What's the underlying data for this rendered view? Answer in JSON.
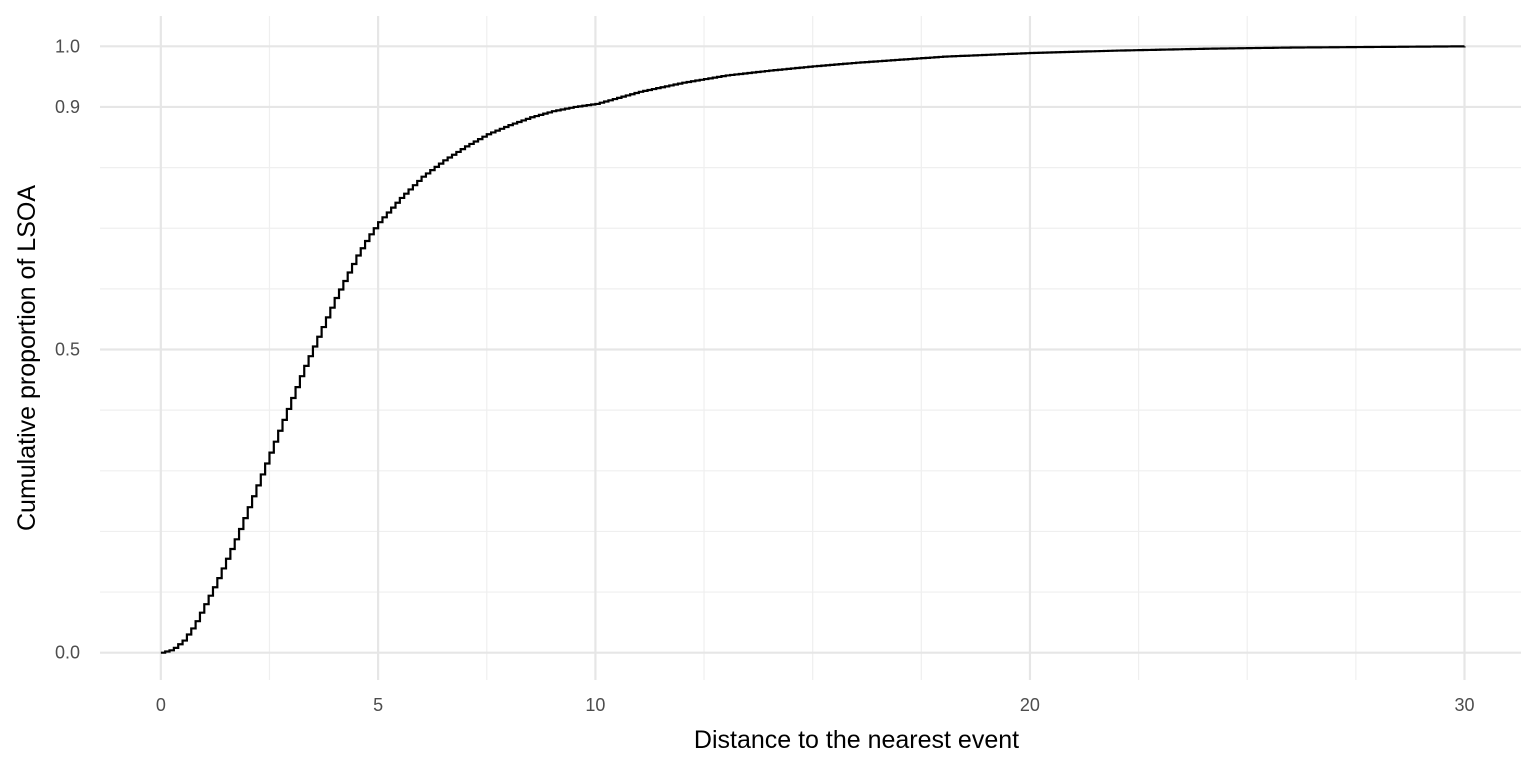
{
  "chart_data": {
    "type": "line",
    "title": "",
    "xlabel": "Distance to the nearest event",
    "ylabel": "Cumulative proportion of LSOA",
    "xlim": [
      -1.4,
      31.3
    ],
    "ylim": [
      -0.045,
      1.05
    ],
    "x_ticks": [
      0,
      5,
      10,
      20,
      30
    ],
    "x_tick_labels": [
      "0",
      "5",
      "10",
      "20",
      "30"
    ],
    "x_minor_breaks": [
      2.5,
      7.5,
      12.5,
      15,
      17.5,
      22.5,
      25,
      27.5
    ],
    "y_ticks": [
      0.0,
      0.5,
      0.9,
      1.0
    ],
    "y_tick_labels": [
      "0.0",
      "0.5",
      "0.9",
      "1.0"
    ],
    "y_minor_breaks": [
      0.1,
      0.2,
      0.3,
      0.4,
      0.6,
      0.7,
      0.8
    ],
    "grid": true,
    "step": true,
    "series": [
      {
        "color": "#000000",
        "x": [
          0,
          0.25,
          0.5,
          0.75,
          1.0,
          1.25,
          1.5,
          1.75,
          2.0,
          2.25,
          2.5,
          2.75,
          3.0,
          3.25,
          3.5,
          3.75,
          4.0,
          4.25,
          4.5,
          4.75,
          5.0,
          5.5,
          6.0,
          6.5,
          7.0,
          7.5,
          8.0,
          8.5,
          9.0,
          9.5,
          10.0,
          11.0,
          12.0,
          13.0,
          14.0,
          15.0,
          16.0,
          17.0,
          18.0,
          19.0,
          20.0,
          22.0,
          24.0,
          26.0,
          28.0,
          30.0
        ],
        "y": [
          0.0,
          0.005,
          0.02,
          0.045,
          0.08,
          0.115,
          0.155,
          0.195,
          0.24,
          0.285,
          0.33,
          0.375,
          0.42,
          0.465,
          0.505,
          0.545,
          0.585,
          0.62,
          0.655,
          0.685,
          0.71,
          0.75,
          0.785,
          0.812,
          0.835,
          0.855,
          0.87,
          0.883,
          0.893,
          0.9,
          0.905,
          0.925,
          0.94,
          0.952,
          0.96,
          0.967,
          0.973,
          0.978,
          0.983,
          0.986,
          0.989,
          0.993,
          0.996,
          0.998,
          0.999,
          1.0
        ]
      }
    ]
  }
}
